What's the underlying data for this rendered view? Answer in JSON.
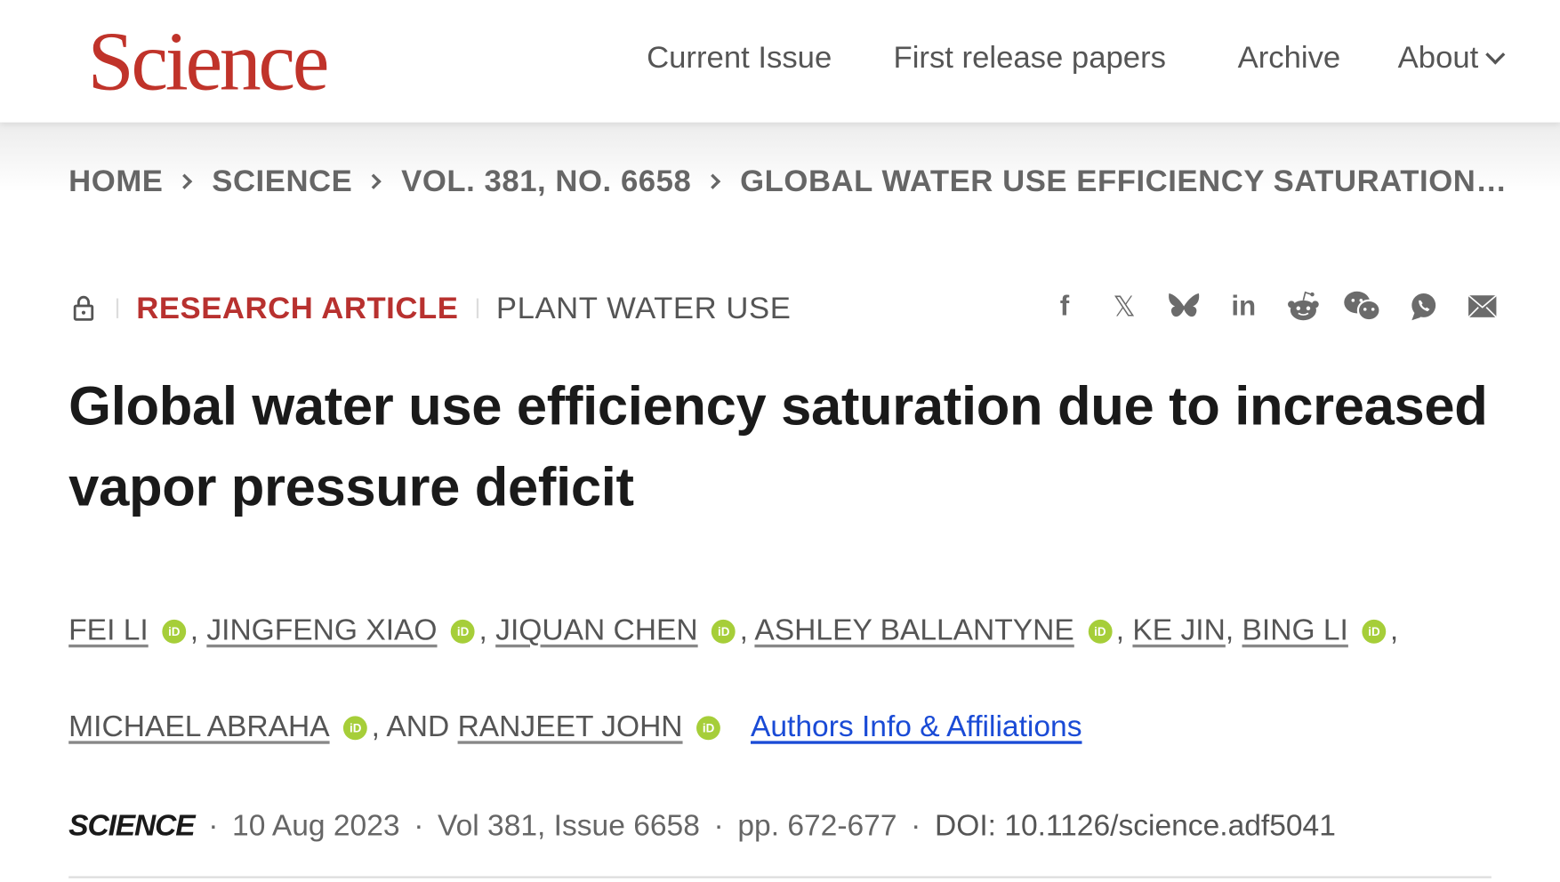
{
  "header": {
    "logo": "Science",
    "nav": [
      "Current Issue",
      "First release papers",
      "Archive",
      "About"
    ]
  },
  "breadcrumb": [
    "HOME",
    "SCIENCE",
    "VOL. 381, NO. 6658",
    "GLOBAL WATER USE EFFICIENCY SATURATION…"
  ],
  "article": {
    "type": "RESEARCH ARTICLE",
    "subject": "PLANT WATER USE",
    "title": "Global water use efficiency saturation due to increased vapor pressure deficit",
    "authors": [
      "FEI LI",
      "JINGFENG XIAO",
      "JIQUAN CHEN",
      "ASHLEY BALLANTYNE",
      "KE JIN",
      "BING LI",
      "MICHAEL ABRAHA",
      "RANJEET JOHN"
    ],
    "and": "AND",
    "orcid_label": "iD",
    "affiliations_link": "Authors Info & Affiliations",
    "journal": "SCIENCE",
    "date": "10 Aug 2023",
    "volume": "Vol 381, Issue 6658",
    "pages": "pp. 672-677",
    "doi": "DOI: 10.1126/science.adf5041"
  },
  "share_icons": [
    "facebook-icon",
    "x-icon",
    "bluesky-icon",
    "linkedin-icon",
    "reddit-icon",
    "wechat-icon",
    "whatsapp-icon",
    "email-icon"
  ],
  "colors": {
    "brand": "#c0332a",
    "link": "#1a4bd6",
    "orcid": "#a6ce39"
  }
}
